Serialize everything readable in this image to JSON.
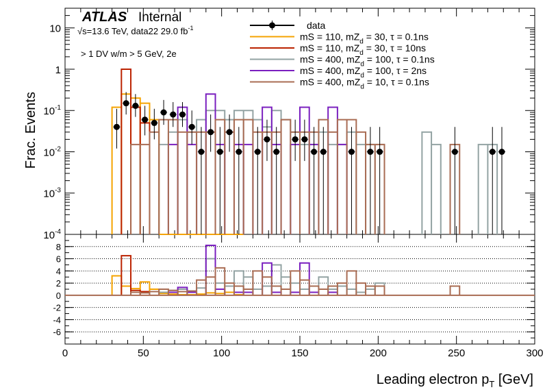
{
  "chart_data": {
    "type": "step-histogram",
    "title": "",
    "header": {
      "brand": "ATLAS",
      "status": "Internal",
      "energy_prefix": "√",
      "energy": "s=13.6 TeV, data22 29.0 fb",
      "lumi_exp": "-1",
      "selection": "> 1 DV w/m > 5 GeV, 2e"
    },
    "xlabel": "Leading electron p",
    "xlabel_sub": "T",
    "xlabel_unit": " [GeV]",
    "ylabel": "Frac. Events",
    "xlim": [
      0,
      300
    ],
    "x_ticks": [
      0,
      50,
      100,
      150,
      200,
      250,
      300
    ],
    "top_panel": {
      "yscale": "log",
      "ylim": [
        0.0001,
        30
      ],
      "y_ticks": [
        {
          "v": 10,
          "base": "10",
          "exp": ""
        },
        {
          "v": 1,
          "base": "1",
          "exp": ""
        },
        {
          "v": 0.1,
          "base": "10",
          "exp": "-1"
        },
        {
          "v": 0.01,
          "base": "10",
          "exp": "-2"
        },
        {
          "v": 0.001,
          "base": "10",
          "exp": "-3"
        },
        {
          "v": 0.0001,
          "base": "10",
          "exp": "-4"
        }
      ]
    },
    "ratio_panel": {
      "ylim": [
        -8,
        10
      ],
      "y_ticks": [
        -6,
        -4,
        -2,
        0,
        2,
        4,
        6,
        8
      ],
      "grid": "horizontal dotted"
    },
    "legend": {
      "placement": "top-right",
      "entries": [
        {
          "label": "data",
          "sub": "",
          "rest": ""
        },
        {
          "label": "mS = 110, mZ",
          "sub": "d",
          "rest": " = 30, τ = 0.1ns"
        },
        {
          "label": "mS = 110, mZ",
          "sub": "d",
          "rest": " = 30, τ = 10ns"
        },
        {
          "label": "mS = 400, mZ",
          "sub": "d",
          "rest": " = 100, τ = 0.1ns"
        },
        {
          "label": "mS = 400, mZ",
          "sub": "d",
          "rest": " = 100, τ = 2ns"
        },
        {
          "label": "mS = 400, mZ",
          "sub": "d",
          "rest": " = 10, τ = 0.1ns"
        }
      ]
    },
    "data": {
      "color": "#000000",
      "points": [
        {
          "x": 33,
          "y": 0.04,
          "lo": 0.012,
          "hi": 0.11
        },
        {
          "x": 39,
          "y": 0.15,
          "lo": 0.08,
          "hi": 0.28
        },
        {
          "x": 45,
          "y": 0.13,
          "lo": 0.07,
          "hi": 0.25
        },
        {
          "x": 51,
          "y": 0.06,
          "lo": 0.025,
          "hi": 0.13
        },
        {
          "x": 57,
          "y": 0.05,
          "lo": 0.02,
          "hi": 0.11
        },
        {
          "x": 63,
          "y": 0.09,
          "lo": 0.045,
          "hi": 0.18
        },
        {
          "x": 69,
          "y": 0.08,
          "lo": 0.04,
          "hi": 0.16
        },
        {
          "x": 75,
          "y": 0.08,
          "lo": 0.04,
          "hi": 0.16
        },
        {
          "x": 81,
          "y": 0.04,
          "lo": 0.015,
          "hi": 0.1
        },
        {
          "x": 87,
          "y": 0.01,
          "lo": 0.0001,
          "hi": 0.04
        },
        {
          "x": 93,
          "y": 0.03,
          "lo": 0.01,
          "hi": 0.08
        },
        {
          "x": 99,
          "y": 0.01,
          "lo": 0.0001,
          "hi": 0.04
        },
        {
          "x": 105,
          "y": 0.03,
          "lo": 0.01,
          "hi": 0.08
        },
        {
          "x": 111,
          "y": 0.01,
          "lo": 0.0001,
          "hi": 0.04
        },
        {
          "x": 123,
          "y": 0.01,
          "lo": 0.0001,
          "hi": 0.04
        },
        {
          "x": 129,
          "y": 0.02,
          "lo": 0.006,
          "hi": 0.06
        },
        {
          "x": 135,
          "y": 0.01,
          "lo": 0.0001,
          "hi": 0.04
        },
        {
          "x": 147,
          "y": 0.02,
          "lo": 0.006,
          "hi": 0.06
        },
        {
          "x": 153,
          "y": 0.02,
          "lo": 0.006,
          "hi": 0.06
        },
        {
          "x": 159,
          "y": 0.01,
          "lo": 0.0001,
          "hi": 0.04
        },
        {
          "x": 165,
          "y": 0.01,
          "lo": 0.0001,
          "hi": 0.04
        },
        {
          "x": 183,
          "y": 0.01,
          "lo": 0.0001,
          "hi": 0.04
        },
        {
          "x": 195,
          "y": 0.01,
          "lo": 0.0001,
          "hi": 0.04
        },
        {
          "x": 201,
          "y": 0.01,
          "lo": 0.0001,
          "hi": 0.04
        },
        {
          "x": 249,
          "y": 0.01,
          "lo": 0.0001,
          "hi": 0.04
        },
        {
          "x": 273,
          "y": 0.01,
          "lo": 0.0001,
          "hi": 0.04
        },
        {
          "x": 279,
          "y": 0.01,
          "lo": 0.0001,
          "hi": 0.04
        }
      ]
    },
    "series": [
      {
        "name": "mS = 110, mZd = 30, τ = 0.1ns",
        "color": "#f5a300",
        "bins": [
          [
            30,
            36,
            0.12
          ],
          [
            36,
            42,
            0.25
          ],
          [
            42,
            48,
            0.2
          ],
          [
            48,
            54,
            0.15
          ],
          [
            54,
            60,
            0.06
          ],
          [
            60,
            66,
            0.0001
          ],
          [
            66,
            72,
            0.0001
          ],
          [
            72,
            78,
            0.0001
          ],
          [
            78,
            84,
            0.0001
          ],
          [
            84,
            90,
            0.0001
          ],
          [
            90,
            96,
            0.0001
          ],
          [
            96,
            102,
            0.0001
          ],
          [
            102,
            108,
            0.0001
          ],
          [
            108,
            114,
            0.0001
          ]
        ],
        "ratio": [
          [
            30,
            36,
            3.2
          ],
          [
            36,
            42,
            1.5
          ],
          [
            42,
            48,
            1.1
          ],
          [
            48,
            54,
            2.2
          ],
          [
            54,
            60,
            1.0
          ],
          [
            60,
            66,
            0.3
          ],
          [
            66,
            72,
            0.2
          ],
          [
            72,
            78,
            0.1
          ],
          [
            78,
            84,
            0.1
          ],
          [
            84,
            90,
            0.2
          ],
          [
            90,
            96,
            0.4
          ],
          [
            96,
            102,
            0.3
          ],
          [
            102,
            108,
            0.5
          ],
          [
            108,
            114,
            0.1
          ]
        ]
      },
      {
        "name": "mS = 110, mZd = 30, τ = 10ns",
        "color": "#bb2200",
        "bins": [
          [
            36,
            42,
            1.0
          ],
          [
            42,
            48,
            0.12
          ],
          [
            48,
            54,
            0.05
          ]
        ],
        "ratio": [
          [
            36,
            42,
            6.5
          ],
          [
            42,
            48,
            0.8
          ],
          [
            48,
            54,
            0.6
          ]
        ]
      },
      {
        "name": "mS = 400, mZd = 100, τ = 0.1ns",
        "color": "#93a3a3",
        "bins": [
          [
            60,
            66,
            0.015
          ],
          [
            66,
            72,
            0.03
          ],
          [
            72,
            78,
            0.06
          ],
          [
            78,
            84,
            0.03
          ],
          [
            84,
            90,
            0.06
          ],
          [
            90,
            96,
            0.1
          ],
          [
            96,
            102,
            0.1
          ],
          [
            102,
            108,
            0.06
          ],
          [
            108,
            114,
            0.1
          ],
          [
            114,
            120,
            0.1
          ],
          [
            120,
            126,
            0.06
          ],
          [
            126,
            132,
            0.04
          ],
          [
            132,
            138,
            0.1
          ],
          [
            138,
            144,
            0.06
          ],
          [
            144,
            150,
            0.03
          ],
          [
            150,
            156,
            0.015
          ],
          [
            156,
            162,
            0.015
          ],
          [
            162,
            168,
            0.03
          ],
          [
            168,
            174,
            0.015
          ],
          [
            174,
            180,
            0.015
          ],
          [
            180,
            186,
            0.03
          ],
          [
            186,
            192,
            0.015
          ],
          [
            192,
            198,
            0.015
          ],
          [
            198,
            204,
            0.015
          ],
          [
            228,
            234,
            0.03
          ],
          [
            234,
            240,
            0.015
          ],
          [
            264,
            270,
            0.015
          ],
          [
            270,
            276,
            0.015
          ]
        ],
        "ratio": [
          [
            60,
            66,
            0.5
          ],
          [
            66,
            72,
            0.8
          ],
          [
            72,
            78,
            1.0
          ],
          [
            78,
            84,
            0.7
          ],
          [
            84,
            90,
            1.2
          ],
          [
            90,
            96,
            6.0
          ],
          [
            96,
            102,
            2.0
          ],
          [
            102,
            108,
            1.5
          ],
          [
            108,
            114,
            4.0
          ],
          [
            114,
            120,
            3.0
          ],
          [
            120,
            126,
            1.0
          ],
          [
            126,
            132,
            1.5
          ],
          [
            132,
            138,
            5.0
          ],
          [
            138,
            144,
            3.0
          ],
          [
            144,
            150,
            2.0
          ],
          [
            150,
            156,
            1.0
          ],
          [
            156,
            162,
            1.5
          ],
          [
            162,
            168,
            3.0
          ],
          [
            168,
            174,
            1.0
          ],
          [
            174,
            180,
            1.5
          ],
          [
            180,
            186,
            1.0
          ],
          [
            186,
            192,
            0.5
          ],
          [
            192,
            198,
            1.0
          ],
          [
            198,
            204,
            2.0
          ]
        ]
      },
      {
        "name": "mS = 400, mZd = 100, τ = 2ns",
        "color": "#7a1fbf",
        "bins": [
          [
            66,
            72,
            0.015
          ],
          [
            72,
            78,
            0.12
          ],
          [
            78,
            84,
            0.015
          ],
          [
            90,
            96,
            0.25
          ],
          [
            96,
            102,
            0.015
          ],
          [
            108,
            114,
            0.015
          ],
          [
            114,
            120,
            0.015
          ],
          [
            126,
            132,
            0.12
          ],
          [
            132,
            138,
            0.015
          ],
          [
            144,
            150,
            0.015
          ],
          [
            150,
            156,
            0.12
          ],
          [
            156,
            162,
            0.015
          ],
          [
            168,
            174,
            0.12
          ],
          [
            174,
            180,
            0.015
          ]
        ],
        "ratio": [
          [
            66,
            72,
            0.5
          ],
          [
            72,
            78,
            1.3
          ],
          [
            78,
            84,
            0.5
          ],
          [
            90,
            96,
            8.2
          ],
          [
            96,
            102,
            1.0
          ],
          [
            108,
            114,
            0.5
          ],
          [
            114,
            120,
            0.5
          ],
          [
            126,
            132,
            5.3
          ],
          [
            132,
            138,
            0.5
          ],
          [
            144,
            150,
            0.5
          ],
          [
            150,
            156,
            5.3
          ],
          [
            156,
            162,
            0.5
          ],
          [
            168,
            174,
            0.5
          ]
        ]
      },
      {
        "name": "mS = 400, mZd = 10, τ = 0.1ns",
        "color": "#a96c53",
        "bins": [
          [
            42,
            48,
            0.015
          ],
          [
            48,
            54,
            0.015
          ],
          [
            54,
            60,
            0.03
          ],
          [
            60,
            66,
            0.06
          ],
          [
            66,
            72,
            0.06
          ],
          [
            72,
            78,
            0.03
          ],
          [
            78,
            84,
            0.03
          ],
          [
            84,
            90,
            0.03
          ],
          [
            90,
            96,
            0.03
          ],
          [
            96,
            102,
            0.06
          ],
          [
            102,
            108,
            0.03
          ],
          [
            108,
            114,
            0.06
          ],
          [
            114,
            120,
            0.06
          ],
          [
            120,
            126,
            0.03
          ],
          [
            126,
            132,
            0.03
          ],
          [
            132,
            138,
            0.03
          ],
          [
            138,
            144,
            0.06
          ],
          [
            144,
            150,
            0.03
          ],
          [
            150,
            156,
            0.03
          ],
          [
            156,
            162,
            0.03
          ],
          [
            162,
            168,
            0.06
          ],
          [
            168,
            174,
            0.03
          ],
          [
            174,
            180,
            0.06
          ],
          [
            180,
            186,
            0.06
          ],
          [
            186,
            192,
            0.03
          ],
          [
            192,
            198,
            0.015
          ],
          [
            198,
            204,
            0.015
          ],
          [
            246,
            252,
            0.015
          ]
        ],
        "ratio": [
          [
            42,
            48,
            0.5
          ],
          [
            48,
            54,
            0.4
          ],
          [
            54,
            60,
            0.6
          ],
          [
            60,
            66,
            1.0
          ],
          [
            66,
            72,
            0.8
          ],
          [
            72,
            78,
            0.6
          ],
          [
            78,
            84,
            0.7
          ],
          [
            84,
            90,
            2.5
          ],
          [
            90,
            96,
            3.0
          ],
          [
            96,
            102,
            4.5
          ],
          [
            102,
            108,
            2.0
          ],
          [
            108,
            114,
            1.5
          ],
          [
            114,
            120,
            1.0
          ],
          [
            120,
            126,
            4.0
          ],
          [
            126,
            132,
            3.0
          ],
          [
            132,
            138,
            1.5
          ],
          [
            138,
            144,
            1.0
          ],
          [
            144,
            150,
            4.0
          ],
          [
            150,
            156,
            2.5
          ],
          [
            156,
            162,
            1.5
          ],
          [
            162,
            168,
            1.0
          ],
          [
            168,
            174,
            1.5
          ],
          [
            174,
            180,
            2.0
          ],
          [
            180,
            186,
            4.0
          ],
          [
            186,
            192,
            2.0
          ],
          [
            192,
            198,
            1.5
          ],
          [
            198,
            204,
            1.5
          ],
          [
            246,
            252,
            1.5
          ]
        ]
      }
    ]
  }
}
